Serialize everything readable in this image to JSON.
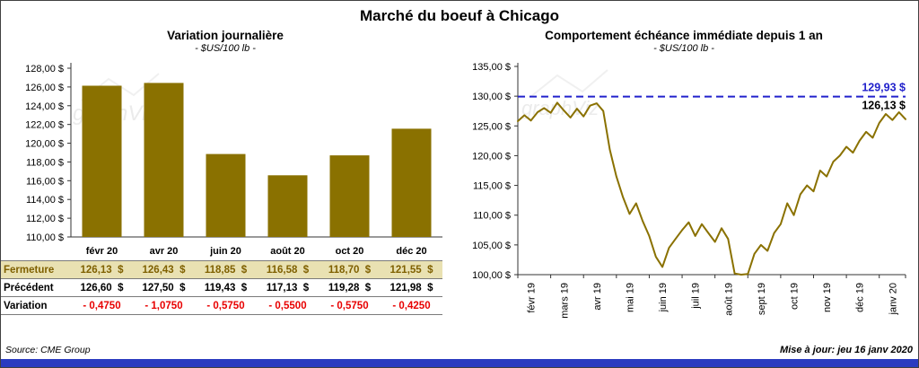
{
  "title": "Marché du boeuf à Chicago",
  "watermark": "graphViz",
  "colors": {
    "gold": "#8a7100",
    "fermeture_bg": "#e9e1b2",
    "fermeture_text": "#7f6000",
    "variation_red": "#e80000",
    "ref_blue": "#2222cc",
    "bottom_bar": "#2a3bc0",
    "axis": "#333333"
  },
  "left_chart": {
    "title": "Variation journalière",
    "subtitle": "- $US/100 lb -",
    "chart_data": {
      "type": "bar",
      "categories": [
        "févr 20",
        "avr 20",
        "juin 20",
        "août 20",
        "oct 20",
        "déc 20"
      ],
      "values": [
        126.13,
        126.43,
        118.85,
        116.58,
        118.7,
        121.55
      ],
      "ylim": [
        110,
        128
      ],
      "ytick_step": 2,
      "ytick_labels": [
        "110,00 $",
        "112,00 $",
        "114,00 $",
        "116,00 $",
        "118,00 $",
        "120,00 $",
        "122,00 $",
        "124,00 $",
        "126,00 $",
        "128,00 $"
      ],
      "bar_color": "#8a7100",
      "grid": false
    },
    "table": {
      "rows": [
        {
          "style": "fermeture",
          "label": "Fermeture",
          "values": [
            "126,13  $",
            "126,43  $",
            "118,85  $",
            "116,58  $",
            "118,70  $",
            "121,55  $"
          ]
        },
        {
          "style": "precedent",
          "label": "Précédent",
          "values": [
            "126,60  $",
            "127,50  $",
            "119,43  $",
            "117,13  $",
            "119,28  $",
            "121,98  $"
          ]
        },
        {
          "style": "variation",
          "label": "Variation",
          "values": [
            "- 0,4750",
            "- 1,0750",
            "- 0,5750",
            "- 0,5500",
            "- 0,5750",
            "- 0,4250"
          ]
        }
      ]
    }
  },
  "right_chart": {
    "title": "Comportement échéance immédiate depuis 1 an",
    "subtitle": "- $US/100 lb -",
    "chart_data": {
      "type": "line",
      "x_labels": [
        "févr 19",
        "mars 19",
        "avr 19",
        "mai 19",
        "juin 19",
        "juil 19",
        "août 19",
        "sept 19",
        "oct 19",
        "nov 19",
        "déc 19",
        "janv 20"
      ],
      "values": [
        125.8,
        126.8,
        125.9,
        127.3,
        128.0,
        127.2,
        128.9,
        127.6,
        126.4,
        127.9,
        126.6,
        128.4,
        128.8,
        127.5,
        121.0,
        116.5,
        113.0,
        110.2,
        112.0,
        109.0,
        106.5,
        103.0,
        101.3,
        104.5,
        106.0,
        107.5,
        108.8,
        106.5,
        108.5,
        107.0,
        105.5,
        107.8,
        106.0,
        100.2,
        100.0,
        100.1,
        103.5,
        105.0,
        104.0,
        107.0,
        108.5,
        112.0,
        110.0,
        113.5,
        115.0,
        114.0,
        117.5,
        116.5,
        119.0,
        120.0,
        121.5,
        120.5,
        122.5,
        124.0,
        123.0,
        125.5,
        127.0,
        126.0,
        127.3,
        126.13
      ],
      "ylim": [
        100,
        135
      ],
      "ytick_step": 5,
      "ytick_labels": [
        "100,00 $",
        "105,00 $",
        "110,00 $",
        "115,00 $",
        "120,00 $",
        "125,00 $",
        "130,00 $",
        "135,00 $"
      ],
      "line_color": "#8a7100",
      "grid": false,
      "reference_line": {
        "value": 129.93,
        "label": "129,93 $",
        "color": "#2222cc",
        "style": "dashed"
      },
      "last_point_label": "126,13 $"
    }
  },
  "footer": {
    "source": "Source: CME Group",
    "updated": "Mise à jour: jeu 16 janv 2020"
  }
}
